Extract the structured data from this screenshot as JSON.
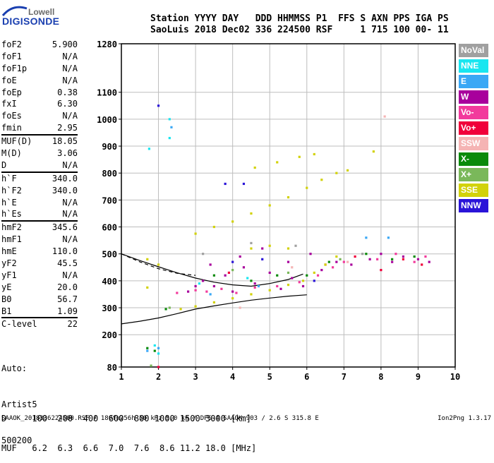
{
  "logo": {
    "top": "Lowell",
    "bottom": "DIGISONDE"
  },
  "header": {
    "line1": "Station YYYY DAY   DDD HHMMSS P1  FFS S AXN PPS IGA PS",
    "line2": "SaoLuis 2018 Dec02 336 224500 RSF     1 715 100 00- 11"
  },
  "params": [
    {
      "label": "foF2",
      "value": "5.900"
    },
    {
      "label": "foF1",
      "value": "N/A"
    },
    {
      "label": "foF1p",
      "value": "N/A"
    },
    {
      "label": "foE",
      "value": "N/A"
    },
    {
      "label": "foEp",
      "value": "0.38"
    },
    {
      "label": "fxI",
      "value": "6.30"
    },
    {
      "label": "foEs",
      "value": "N/A"
    },
    {
      "label": "fmin",
      "value": "2.95"
    },
    {
      "label": "MUF(D)",
      "value": "18.05"
    },
    {
      "label": "M(D)",
      "value": "3.06"
    },
    {
      "label": "D",
      "value": "N/A"
    },
    {
      "label": "h`F",
      "value": "340.0"
    },
    {
      "label": "h`F2",
      "value": "340.0"
    },
    {
      "label": "h`E",
      "value": "N/A"
    },
    {
      "label": "h`Es",
      "value": "N/A"
    },
    {
      "label": "hmF2",
      "value": "345.6"
    },
    {
      "label": "hmF1",
      "value": "N/A"
    },
    {
      "label": "hmE",
      "value": "110.0"
    },
    {
      "label": "yF2",
      "value": "45.5"
    },
    {
      "label": "yF1",
      "value": "N/A"
    },
    {
      "label": "yE",
      "value": "20.0"
    },
    {
      "label": "B0",
      "value": "56.7"
    },
    {
      "label": "B1",
      "value": "1.09"
    },
    {
      "label": "C-level",
      "value": "22"
    }
  ],
  "auto": [
    "Auto:",
    "Artist5",
    "500200"
  ],
  "legend": [
    {
      "label": "NoVal",
      "color": "#a0a0a0"
    },
    {
      "label": "NNE",
      "color": "#19e6f0"
    },
    {
      "label": "E",
      "color": "#3aa8f5"
    },
    {
      "label": "W",
      "color": "#a8009c"
    },
    {
      "label": "Vo-",
      "color": "#f23a9c"
    },
    {
      "label": "Vo+",
      "color": "#f0003a"
    },
    {
      "label": "SSW",
      "color": "#f5b4b4"
    },
    {
      "label": "X-",
      "color": "#0a8a0a"
    },
    {
      "label": "X+",
      "color": "#7ab85a"
    },
    {
      "label": "SSE",
      "color": "#d2d20a"
    },
    {
      "label": "NNW",
      "color": "#2a14d8"
    }
  ],
  "dtable": {
    "row1": "D     100  200  400  600  800 1000 1500 3000 [km]",
    "row2": "MUF   6.2  6.3  6.6  7.0  7.6  8.6 11.2 18.0 [MHz]"
  },
  "footer": {
    "left": "SAAOK_2018336224500.RSF / 180fx256h 50 kHz 5.0 km / DPS-4 SAAOK 903 / 2.6 S 315.8 E",
    "right": "Ion2Png 1.3.17"
  },
  "chart_data": {
    "type": "scatter",
    "title": "",
    "xlabel": "",
    "ylabel": "",
    "xlim": [
      1,
      10
    ],
    "ylim": [
      80,
      1280
    ],
    "x_ticks": [
      1,
      2,
      3,
      4,
      5,
      6,
      7,
      8,
      9,
      10
    ],
    "y_ticks": [
      80,
      200,
      300,
      400,
      500,
      600,
      700,
      800,
      900,
      1000,
      1100,
      1280
    ],
    "grid": true,
    "series": [
      {
        "name": "W",
        "color": "#a8009c",
        "points": [
          [
            3.2,
            400
          ],
          [
            3.5,
            380
          ],
          [
            3.8,
            420
          ],
          [
            4.0,
            360
          ],
          [
            4.3,
            450
          ],
          [
            4.6,
            390
          ],
          [
            5.0,
            430
          ],
          [
            5.3,
            370
          ],
          [
            5.6,
            410
          ],
          [
            5.9,
            380
          ],
          [
            6.4,
            440
          ],
          [
            6.8,
            470
          ],
          [
            7.2,
            460
          ],
          [
            7.7,
            480
          ],
          [
            8.0,
            500
          ],
          [
            8.3,
            470
          ],
          [
            8.6,
            490
          ],
          [
            9.0,
            480
          ],
          [
            9.3,
            470
          ],
          [
            3.4,
            460
          ],
          [
            4.2,
            490
          ],
          [
            4.8,
            520
          ],
          [
            5.5,
            470
          ],
          [
            6.1,
            500
          ],
          [
            2.8,
            360
          ],
          [
            3.0,
            380
          ]
        ]
      },
      {
        "name": "Vo-",
        "color": "#f23a9c",
        "points": [
          [
            2.5,
            355
          ],
          [
            3.0,
            365
          ],
          [
            3.3,
            360
          ],
          [
            3.7,
            370
          ],
          [
            4.1,
            355
          ],
          [
            4.6,
            375
          ],
          [
            5.2,
            380
          ],
          [
            5.8,
            395
          ],
          [
            6.3,
            420
          ],
          [
            6.7,
            450
          ],
          [
            7.0,
            470
          ],
          [
            7.9,
            480
          ],
          [
            8.4,
            500
          ],
          [
            8.9,
            470
          ],
          [
            9.2,
            490
          ]
        ]
      },
      {
        "name": "Vo+",
        "color": "#f0003a",
        "points": [
          [
            2.0,
            80
          ],
          [
            3.9,
            430
          ],
          [
            6.5,
            460
          ],
          [
            8.0,
            440
          ],
          [
            8.6,
            480
          ],
          [
            9.1,
            460
          ],
          [
            7.3,
            490
          ]
        ]
      },
      {
        "name": "SSE",
        "color": "#d2d20a",
        "points": [
          [
            2.6,
            295
          ],
          [
            3.0,
            305
          ],
          [
            3.5,
            320
          ],
          [
            4.0,
            335
          ],
          [
            4.5,
            350
          ],
          [
            5.0,
            365
          ],
          [
            5.5,
            385
          ],
          [
            5.9,
            400
          ],
          [
            6.2,
            430
          ],
          [
            6.5,
            460
          ],
          [
            6.8,
            490
          ],
          [
            3.0,
            575
          ],
          [
            3.5,
            600
          ],
          [
            4.0,
            620
          ],
          [
            4.5,
            650
          ],
          [
            5.0,
            680
          ],
          [
            5.5,
            710
          ],
          [
            6.0,
            745
          ],
          [
            6.4,
            775
          ],
          [
            6.8,
            800
          ],
          [
            7.1,
            810
          ],
          [
            4.6,
            820
          ],
          [
            5.2,
            840
          ],
          [
            5.8,
            860
          ],
          [
            6.2,
            870
          ],
          [
            4.5,
            520
          ],
          [
            5.0,
            530
          ],
          [
            5.5,
            520
          ],
          [
            2.0,
            460
          ],
          [
            1.7,
            375
          ],
          [
            1.7,
            480
          ],
          [
            7.8,
            880
          ]
        ]
      },
      {
        "name": "X-",
        "color": "#0a8a0a",
        "points": [
          [
            2.2,
            295
          ],
          [
            1.7,
            150
          ],
          [
            1.9,
            140
          ],
          [
            3.5,
            420
          ],
          [
            4.5,
            400
          ],
          [
            5.2,
            420
          ],
          [
            6.0,
            420
          ],
          [
            6.6,
            470
          ],
          [
            7.6,
            500
          ],
          [
            8.3,
            480
          ],
          [
            8.9,
            490
          ]
        ]
      },
      {
        "name": "X+",
        "color": "#7ab85a",
        "points": [
          [
            1.8,
            85
          ],
          [
            2.3,
            300
          ],
          [
            4.0,
            440
          ],
          [
            5.5,
            430
          ],
          [
            6.9,
            480
          ]
        ]
      },
      {
        "name": "NNE",
        "color": "#19e6f0",
        "points": [
          [
            1.75,
            890
          ],
          [
            2.3,
            1000
          ],
          [
            2.3,
            930
          ],
          [
            1.9,
            160
          ],
          [
            2.0,
            130
          ],
          [
            3.1,
            390
          ],
          [
            4.4,
            410
          ]
        ]
      },
      {
        "name": "E",
        "color": "#3aa8f5",
        "points": [
          [
            2.35,
            970
          ],
          [
            1.7,
            140
          ],
          [
            2.0,
            150
          ],
          [
            3.4,
            350
          ],
          [
            4.7,
            380
          ],
          [
            7.6,
            560
          ],
          [
            8.2,
            560
          ]
        ]
      },
      {
        "name": "SSW",
        "color": "#f5b4b4",
        "points": [
          [
            7.1,
            470
          ],
          [
            8.1,
            1010
          ],
          [
            4.2,
            300
          ],
          [
            5.6,
            450
          ]
        ]
      },
      {
        "name": "NNW",
        "color": "#2a14d8",
        "points": [
          [
            4.0,
            470
          ],
          [
            4.8,
            480
          ],
          [
            6.2,
            400
          ],
          [
            2.0,
            1050
          ],
          [
            3.8,
            760
          ],
          [
            4.3,
            760
          ]
        ]
      },
      {
        "name": "NoVal",
        "color": "#a0a0a0",
        "points": [
          [
            3.2,
            500
          ],
          [
            4.5,
            540
          ],
          [
            5.7,
            530
          ],
          [
            7.5,
            500
          ]
        ]
      }
    ],
    "curves": [
      {
        "style": "solid",
        "points": [
          [
            1.0,
            240
          ],
          [
            1.5,
            250
          ],
          [
            2.0,
            262
          ],
          [
            2.5,
            278
          ],
          [
            3.0,
            295
          ],
          [
            3.5,
            307
          ],
          [
            4.0,
            318
          ],
          [
            4.5,
            328
          ],
          [
            5.0,
            336
          ],
          [
            5.5,
            343
          ],
          [
            6.0,
            348
          ]
        ]
      },
      {
        "style": "solid",
        "points": [
          [
            1.0,
            500
          ],
          [
            1.5,
            475
          ],
          [
            2.0,
            452
          ],
          [
            2.5,
            430
          ],
          [
            3.0,
            410
          ],
          [
            3.5,
            395
          ],
          [
            4.0,
            385
          ],
          [
            4.5,
            380
          ],
          [
            5.0,
            390
          ],
          [
            5.5,
            405
          ],
          [
            5.9,
            425
          ]
        ]
      },
      {
        "style": "dashed",
        "points": [
          [
            1.0,
            500
          ],
          [
            1.5,
            470
          ],
          [
            2.0,
            445
          ],
          [
            2.5,
            428
          ],
          [
            3.0,
            420
          ]
        ]
      }
    ]
  }
}
